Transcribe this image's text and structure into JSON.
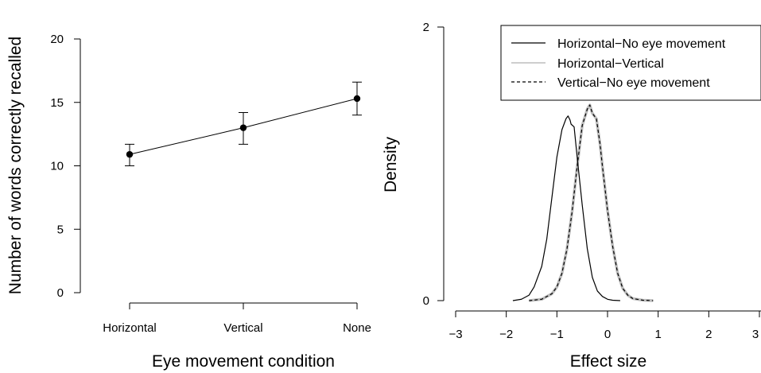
{
  "chart_data": [
    {
      "type": "line",
      "xlabel": "Eye movement condition",
      "ylabel": "Number of words correctly recalled",
      "categories": [
        "Horizontal",
        "Vertical",
        "None"
      ],
      "values": [
        10.9,
        13.0,
        15.3
      ],
      "error_low": [
        10.0,
        11.7,
        14.0
      ],
      "error_high": [
        11.7,
        14.2,
        16.6
      ],
      "ylim": [
        0,
        20
      ],
      "yticks": [
        "0",
        "5",
        "10",
        "15",
        "20"
      ],
      "grid": false
    },
    {
      "type": "line",
      "xlabel": "Effect size",
      "ylabel": "Density",
      "xlim": [
        -3,
        3
      ],
      "ylim": [
        0,
        2
      ],
      "xticks": [
        "−3",
        "−2",
        "−1",
        "0",
        "1",
        "2",
        "3"
      ],
      "yticks": [
        "0",
        "2"
      ],
      "legend_position": "top-right",
      "grid": false,
      "series": [
        {
          "name": "Horizontal−No eye movement",
          "color": "#000000",
          "style": "solid",
          "x": [
            -1.87,
            -1.7,
            -1.55,
            -1.45,
            -1.3,
            -1.2,
            -1.1,
            -1.0,
            -0.9,
            -0.82,
            -0.78,
            -0.74,
            -0.72,
            -0.66,
            -0.6,
            -0.5,
            -0.4,
            -0.3,
            -0.2,
            -0.1,
            0.0,
            0.1,
            0.25
          ],
          "y": [
            0.0,
            0.01,
            0.04,
            0.1,
            0.25,
            0.45,
            0.75,
            1.05,
            1.25,
            1.33,
            1.35,
            1.32,
            1.29,
            1.27,
            1.05,
            0.7,
            0.38,
            0.17,
            0.07,
            0.03,
            0.01,
            0.003,
            0.0
          ]
        },
        {
          "name": "Horizontal−Vertical",
          "color": "#bdbdbd",
          "style": "solid",
          "x": [
            -1.55,
            -1.3,
            -1.1,
            -1.0,
            -0.9,
            -0.8,
            -0.7,
            -0.6,
            -0.5,
            -0.45,
            -0.4,
            -0.35,
            -0.3,
            -0.22,
            -0.15,
            -0.1,
            0.0,
            0.1,
            0.2,
            0.3,
            0.4,
            0.5,
            0.7,
            0.9
          ],
          "y": [
            0.0,
            0.01,
            0.05,
            0.1,
            0.2,
            0.38,
            0.65,
            0.98,
            1.28,
            1.34,
            1.4,
            1.43,
            1.37,
            1.33,
            1.15,
            0.98,
            0.66,
            0.4,
            0.2,
            0.09,
            0.04,
            0.015,
            0.003,
            0.0
          ]
        },
        {
          "name": "Vertical−No eye movement",
          "color": "#000000",
          "style": "dashed",
          "x": [
            -1.55,
            -1.3,
            -1.1,
            -1.0,
            -0.9,
            -0.8,
            -0.7,
            -0.6,
            -0.5,
            -0.45,
            -0.4,
            -0.35,
            -0.3,
            -0.22,
            -0.15,
            -0.1,
            0.0,
            0.1,
            0.2,
            0.3,
            0.4,
            0.5,
            0.7,
            0.9
          ],
          "y": [
            0.0,
            0.01,
            0.05,
            0.1,
            0.2,
            0.38,
            0.65,
            0.98,
            1.28,
            1.34,
            1.4,
            1.43,
            1.37,
            1.33,
            1.15,
            0.98,
            0.66,
            0.4,
            0.2,
            0.09,
            0.04,
            0.015,
            0.003,
            0.0
          ]
        }
      ]
    }
  ]
}
